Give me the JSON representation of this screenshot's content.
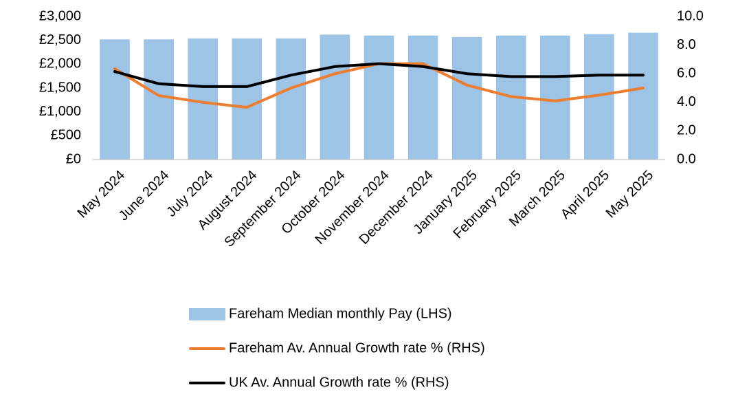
{
  "chart_data": {
    "type": "bar_line",
    "categories": [
      "May 2024",
      "June 2024",
      "July 2024",
      "August 2024",
      "September 2024",
      "October 2024",
      "November 2024",
      "December 2024",
      "January 2025",
      "February 2025",
      "March 2025",
      "April 2025",
      "May 2025"
    ],
    "series": [
      {
        "name": "Fareham Median monthly Pay (LHS)",
        "type": "bar",
        "color": "#9dc3e6",
        "values": [
          2520,
          2520,
          2540,
          2540,
          2540,
          2620,
          2600,
          2600,
          2570,
          2600,
          2600,
          2630,
          2660
        ]
      },
      {
        "name": "Fareham Av. Annual Growth rate % (RHS)",
        "type": "line",
        "axis": "y2",
        "color": "#ed7d31",
        "values": [
          6.35,
          4.47,
          4.0,
          3.65,
          5.0,
          6.0,
          6.7,
          6.7,
          5.2,
          4.4,
          4.1,
          4.5,
          5.0
        ]
      },
      {
        "name": "UK Av. Annual Growth rate % (RHS)",
        "type": "line",
        "axis": "y2",
        "color": "#000000",
        "values": [
          6.15,
          5.3,
          5.1,
          5.1,
          5.9,
          6.5,
          6.7,
          6.5,
          6.0,
          5.8,
          5.8,
          5.9,
          5.9
        ]
      }
    ],
    "ylim": [
      0,
      3000
    ],
    "yticks": [
      {
        "value": 0,
        "label": "£0"
      },
      {
        "value": 500,
        "label": "£500"
      },
      {
        "value": 1000,
        "label": "£1,000"
      },
      {
        "value": 1500,
        "label": "£1,500"
      },
      {
        "value": 2000,
        "label": "£2,000"
      },
      {
        "value": 2500,
        "label": "£2,500"
      },
      {
        "value": 3000,
        "label": "£3,000"
      }
    ],
    "y2lim": [
      0,
      10
    ],
    "y2ticks": [
      {
        "value": 0,
        "label": "0.0"
      },
      {
        "value": 2,
        "label": "2.0"
      },
      {
        "value": 4,
        "label": "4.0"
      },
      {
        "value": 6,
        "label": "6.0"
      },
      {
        "value": 8,
        "label": "8.0"
      },
      {
        "value": 10,
        "label": "10.0"
      }
    ],
    "grid": false,
    "legend": "bottom"
  }
}
